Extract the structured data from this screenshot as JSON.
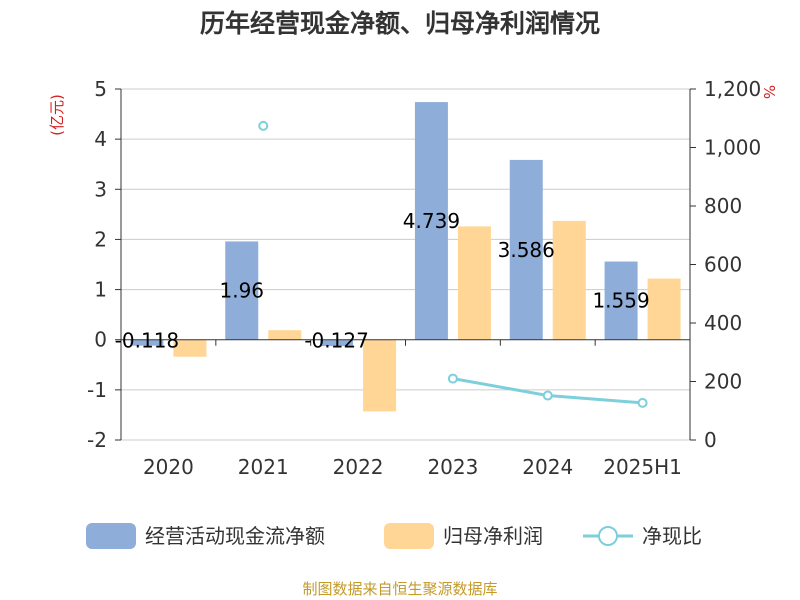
{
  "chart_data": {
    "type": "bar",
    "title": "历年经营现金净额、归母净利润情况",
    "categories": [
      "2020",
      "2021",
      "2022",
      "2023",
      "2024",
      "2025H1"
    ],
    "left_axis": {
      "unit_label": "(亿元)",
      "min": -2,
      "max": 5,
      "ticks": [
        -2,
        -1,
        0,
        1,
        2,
        3,
        4,
        5
      ]
    },
    "right_axis": {
      "unit_label": "%",
      "min": 0,
      "max": 1200,
      "ticks": [
        0,
        200,
        400,
        600,
        800,
        1000,
        1200
      ],
      "tick_labels": [
        "0",
        "200",
        "400",
        "600",
        "800",
        "1,000",
        "1,200"
      ]
    },
    "series": [
      {
        "name": "经营活动现金流净额",
        "type": "bar",
        "axis": "left",
        "color": "#8eadd9",
        "values": [
          -0.118,
          1.96,
          -0.127,
          4.739,
          3.586,
          1.559
        ],
        "data_labels": [
          "-0.118",
          "1.96",
          "-0.127",
          "4.739",
          "3.586",
          "1.559"
        ]
      },
      {
        "name": "归母净利润",
        "type": "bar",
        "axis": "left",
        "color": "#ffd696",
        "values": [
          -0.34,
          0.19,
          -1.43,
          2.26,
          2.37,
          1.22
        ]
      },
      {
        "name": "净现比",
        "type": "line",
        "axis": "right",
        "color": "#7ccfdb",
        "values": [
          null,
          1074,
          null,
          210,
          152,
          127
        ]
      }
    ],
    "grid": true,
    "legend_position": "bottom"
  },
  "colors": {
    "unit_label": "#d61f1f",
    "source": "#c49a2a",
    "grid": "#cccccc",
    "axis": "#333333"
  },
  "footer": {
    "source": "制图数据来自恒生聚源数据库"
  }
}
